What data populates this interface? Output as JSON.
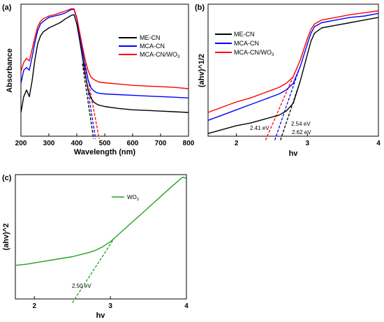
{
  "panels": {
    "a": {
      "tag": "(a)",
      "xlabel": "Wavelength (nm)",
      "ylabel": "Absorbance"
    },
    "b": {
      "tag": "(b)",
      "xlabel": "hv",
      "ylabel": "(ahv)^1/2"
    },
    "c": {
      "tag": "(c)",
      "xlabel": "hv",
      "ylabel": "(ahv)^2"
    }
  },
  "chart_data": [
    {
      "id": "a",
      "type": "line",
      "xlabel": "Wavelength (nm)",
      "ylabel": "Absorbance",
      "xlim": [
        200,
        800
      ],
      "ylim": [
        0,
        1
      ],
      "xticks": [
        200,
        300,
        400,
        500,
        600,
        700,
        800
      ],
      "yticks_shown": false,
      "legend_position": "top-right",
      "series": [
        {
          "name": "ME-CN",
          "color": "#000000",
          "x": [
            200,
            210,
            220,
            230,
            240,
            250,
            260,
            270,
            280,
            300,
            320,
            340,
            360,
            380,
            390,
            400,
            410,
            420,
            430,
            440,
            450,
            460,
            470,
            480,
            500,
            550,
            600,
            650,
            700,
            750,
            800
          ],
          "y": [
            0.18,
            0.3,
            0.35,
            0.3,
            0.42,
            0.58,
            0.7,
            0.76,
            0.79,
            0.82,
            0.84,
            0.86,
            0.89,
            0.915,
            0.92,
            0.85,
            0.73,
            0.6,
            0.47,
            0.36,
            0.29,
            0.26,
            0.245,
            0.235,
            0.225,
            0.21,
            0.2,
            0.195,
            0.19,
            0.185,
            0.18
          ]
        },
        {
          "name": "MCA-CN",
          "color": "#0000ff",
          "x": [
            200,
            210,
            220,
            230,
            240,
            250,
            260,
            270,
            280,
            300,
            320,
            340,
            360,
            380,
            390,
            400,
            410,
            420,
            430,
            440,
            450,
            460,
            470,
            480,
            500,
            550,
            600,
            650,
            700,
            750,
            800
          ],
          "y": [
            0.4,
            0.5,
            0.52,
            0.5,
            0.6,
            0.71,
            0.8,
            0.85,
            0.87,
            0.9,
            0.91,
            0.92,
            0.935,
            0.96,
            0.96,
            0.89,
            0.77,
            0.65,
            0.53,
            0.43,
            0.37,
            0.345,
            0.33,
            0.325,
            0.32,
            0.315,
            0.31,
            0.305,
            0.3,
            0.295,
            0.29
          ]
        },
        {
          "name": "MCA-CN/WO3",
          "color": "#ff0000",
          "x": [
            200,
            210,
            220,
            230,
            240,
            250,
            260,
            270,
            280,
            300,
            320,
            340,
            360,
            380,
            390,
            400,
            410,
            420,
            430,
            440,
            450,
            460,
            470,
            480,
            500,
            550,
            600,
            650,
            700,
            750,
            800
          ],
          "y": [
            0.49,
            0.56,
            0.59,
            0.57,
            0.66,
            0.75,
            0.83,
            0.87,
            0.89,
            0.91,
            0.92,
            0.935,
            0.95,
            0.965,
            0.965,
            0.9,
            0.79,
            0.68,
            0.58,
            0.5,
            0.45,
            0.43,
            0.42,
            0.41,
            0.405,
            0.395,
            0.385,
            0.38,
            0.375,
            0.37,
            0.36
          ]
        }
      ],
      "tangents": [
        {
          "color": "#000000",
          "x": [
            420,
            460
          ]
        },
        {
          "color": "#0000ff",
          "x": [
            425,
            467
          ]
        },
        {
          "color": "#ff0000",
          "x": [
            430,
            480
          ]
        }
      ]
    },
    {
      "id": "b",
      "type": "line",
      "xlabel": "hv",
      "ylabel": "(ahv)^1/2",
      "xlim": [
        1.6,
        4.0
      ],
      "ylim": [
        0,
        1
      ],
      "xticks": [
        2,
        3,
        4
      ],
      "yticks_shown": false,
      "legend_position": "top-left",
      "series": [
        {
          "name": "ME-CN",
          "color": "#000000",
          "x": [
            1.6,
            1.8,
            2.0,
            2.2,
            2.4,
            2.6,
            2.7,
            2.8,
            2.9,
            3.0,
            3.05,
            3.1,
            3.2,
            3.4,
            3.6,
            3.8,
            4.0
          ],
          "y": [
            0.02,
            0.05,
            0.08,
            0.1,
            0.13,
            0.16,
            0.19,
            0.25,
            0.42,
            0.62,
            0.72,
            0.78,
            0.82,
            0.84,
            0.86,
            0.88,
            0.9
          ]
        },
        {
          "name": "MCA-CN",
          "color": "#0000ff",
          "x": [
            1.6,
            1.8,
            2.0,
            2.2,
            2.4,
            2.6,
            2.7,
            2.8,
            2.9,
            3.0,
            3.05,
            3.1,
            3.2,
            3.4,
            3.6,
            3.8,
            4.0
          ],
          "y": [
            0.12,
            0.16,
            0.2,
            0.24,
            0.28,
            0.32,
            0.35,
            0.4,
            0.53,
            0.7,
            0.78,
            0.83,
            0.86,
            0.88,
            0.9,
            0.91,
            0.93
          ]
        },
        {
          "name": "MCA-CN/WO3",
          "color": "#ff0000",
          "x": [
            1.6,
            1.8,
            2.0,
            2.2,
            2.4,
            2.6,
            2.7,
            2.8,
            2.9,
            3.0,
            3.05,
            3.1,
            3.2,
            3.4,
            3.6,
            3.8,
            4.0
          ],
          "y": [
            0.18,
            0.22,
            0.26,
            0.29,
            0.33,
            0.37,
            0.4,
            0.45,
            0.58,
            0.74,
            0.81,
            0.85,
            0.88,
            0.9,
            0.92,
            0.935,
            0.95
          ]
        }
      ],
      "tangents": [
        {
          "color": "#ff0000",
          "x": [
            2.41,
            2.85
          ],
          "value_label": "2.41 eV"
        },
        {
          "color": "#0000ff",
          "x": [
            2.54,
            2.88
          ],
          "value_label": "2.54 eV"
        },
        {
          "color": "#000000",
          "x": [
            2.62,
            2.9
          ],
          "value_label": "2.62 eV"
        }
      ]
    },
    {
      "id": "c",
      "type": "line",
      "xlabel": "hv",
      "ylabel": "(ahv)^2",
      "xlim": [
        1.75,
        4.0
      ],
      "ylim": [
        0,
        1
      ],
      "xticks": [
        2,
        3,
        4
      ],
      "yticks_shown": false,
      "legend_position": "top-center",
      "series": [
        {
          "name": "WO3",
          "color": "#22a022",
          "x": [
            1.75,
            1.9,
            2.1,
            2.3,
            2.5,
            2.7,
            2.8,
            2.9,
            3.0,
            3.2,
            3.4,
            3.6,
            3.8,
            3.95,
            4.0
          ],
          "y": [
            0.27,
            0.28,
            0.3,
            0.32,
            0.34,
            0.37,
            0.39,
            0.42,
            0.46,
            0.57,
            0.68,
            0.79,
            0.9,
            0.98,
            0.97
          ]
        }
      ],
      "tangents": [
        {
          "color": "#22a022",
          "x": [
            2.5,
            3.05
          ],
          "value_label": "2.50 eV"
        }
      ]
    }
  ]
}
